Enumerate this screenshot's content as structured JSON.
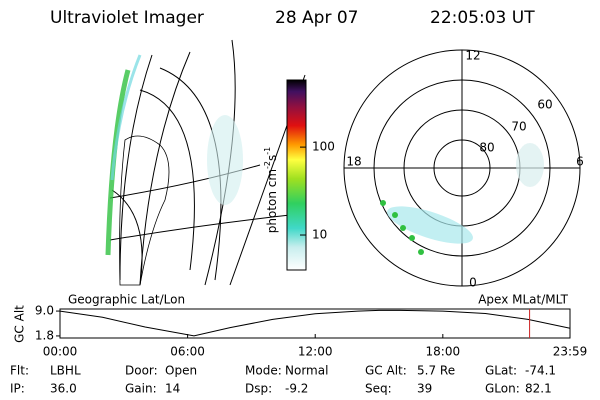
{
  "header": {
    "title": "Ultraviolet Imager",
    "date": "28 Apr 07",
    "time": "22:05:03 UT"
  },
  "polar_map": {
    "mlt_labels": [
      "12",
      "18",
      "6",
      "0"
    ],
    "lat_labels": [
      "80",
      "70",
      "60"
    ]
  },
  "colorbar": {
    "label_parts": [
      "photon cm",
      "-2",
      "s",
      "-1"
    ],
    "lim": [
      4,
      580
    ],
    "log": true,
    "ticks": [
      10,
      100
    ]
  },
  "alt_plot": {
    "left_title": "Geographic Lat/Lon",
    "right_title": "Apex MLat/MLT",
    "ylabel": "GC Alt",
    "xlim": [
      0,
      23.98
    ],
    "ylim": [
      1.2,
      9.6
    ],
    "yticks": [
      {
        "value": 9,
        "label": "9.0"
      },
      {
        "value": 1.8,
        "label": "1.8"
      }
    ],
    "xticks": [
      {
        "value": 0,
        "label": "00:00"
      },
      {
        "value": 6,
        "label": "06:00"
      },
      {
        "value": 12,
        "label": "12:00"
      },
      {
        "value": 18,
        "label": "18:00"
      },
      {
        "value": 23.98,
        "label": "23:59"
      }
    ],
    "hours": [
      0,
      2,
      4,
      6.3,
      8,
      10,
      12,
      14,
      15,
      16,
      18,
      20,
      22,
      23.98
    ],
    "alt": [
      9.0,
      7.2,
      4.4,
      1.8,
      4.2,
      6.6,
      8.2,
      9.0,
      9.2,
      9.2,
      9.0,
      8.3,
      6.6,
      4.0
    ],
    "marker_hour": 22.08,
    "marker_color": "#cc2222"
  },
  "footer": {
    "rows": [
      [
        {
          "label": "Flt:",
          "value": "LBHL"
        },
        {
          "label": "Door:",
          "value": "Open"
        },
        {
          "label": "Mode:",
          "value": "Normal"
        },
        {
          "label": "GC Alt:",
          "value": "5.7 Re"
        },
        {
          "label": "GLat:",
          "value": "-74.1"
        }
      ],
      [
        {
          "label": "IP:",
          "value": "36.0"
        },
        {
          "label": "Gain:",
          "value": "14"
        },
        {
          "label": "Dsp:",
          "value": "-9.2"
        },
        {
          "label": "Seq:",
          "value": "39"
        },
        {
          "label": "GLon:",
          "value": "82.1"
        }
      ]
    ]
  }
}
